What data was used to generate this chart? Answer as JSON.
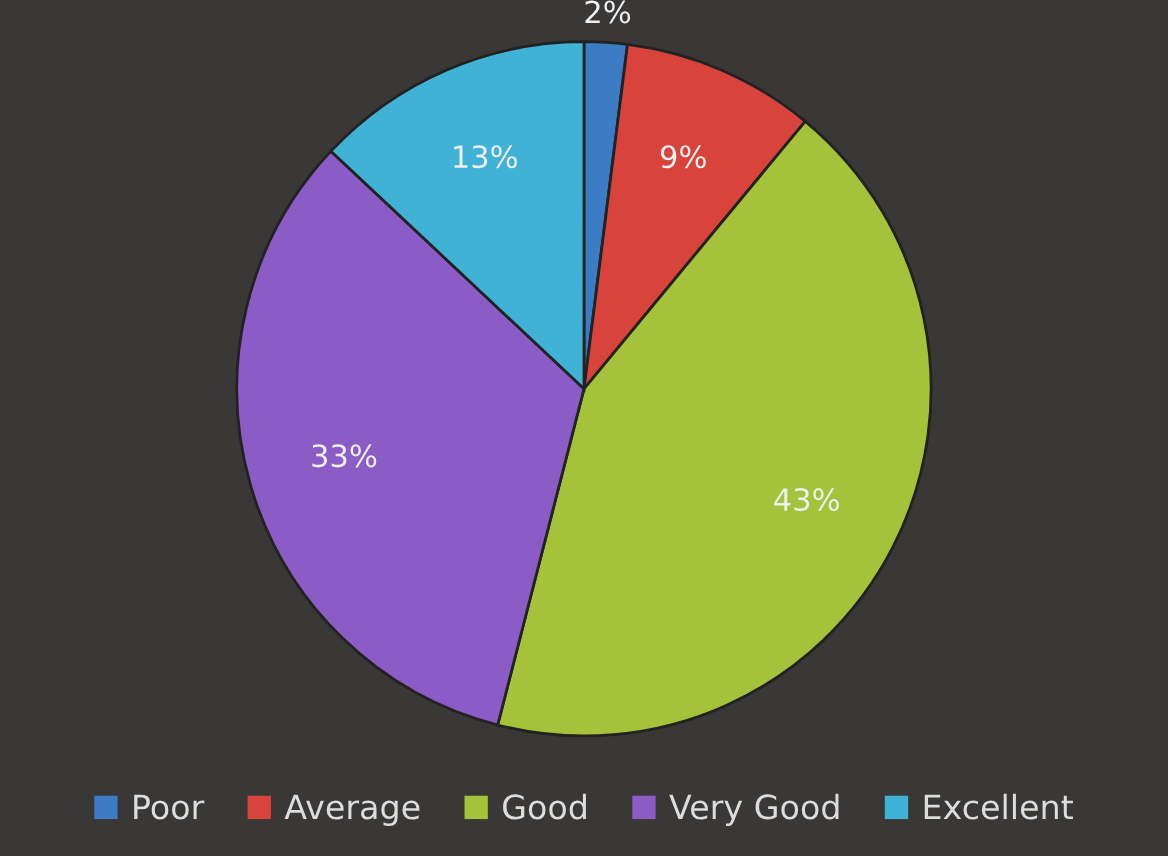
{
  "chart_data": {
    "type": "pie",
    "categories": [
      "Poor",
      "Average",
      "Good",
      "Very Good",
      "Excellent"
    ],
    "values": [
      2,
      9,
      43,
      33,
      13
    ],
    "colors": [
      "#3b7cc4",
      "#d8433b",
      "#a4c23a",
      "#8b5cc6",
      "#3fb2d6"
    ],
    "value_labels": [
      "2%",
      "9%",
      "43%",
      "33%",
      "13%"
    ],
    "legend": "bottom"
  }
}
